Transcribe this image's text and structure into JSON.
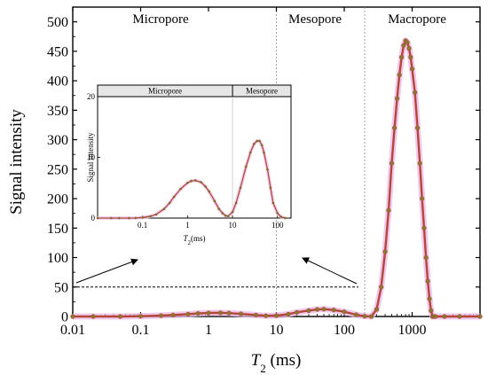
{
  "chart_data": {
    "type": "line",
    "xscale": "log",
    "xlim": [
      0.01,
      10000
    ],
    "ylim": [
      0,
      525
    ],
    "xlabel_main": "T",
    "xlabel_sub": "2",
    "xlabel_unit": " (ms)",
    "ylabel": "Signal intensity",
    "xticks": [
      0.01,
      0.1,
      1,
      10,
      100,
      1000
    ],
    "xtick_labels": [
      "0.01",
      "0.1",
      "1",
      "10",
      "100",
      "1000"
    ],
    "yticks": [
      0,
      50,
      100,
      150,
      200,
      250,
      300,
      350,
      400,
      450,
      500
    ],
    "ytick_labels": [
      "0",
      "50",
      "100",
      "150",
      "200",
      "250",
      "300",
      "350",
      "400",
      "450",
      "500"
    ],
    "regions": [
      {
        "label": "Micropore",
        "from": 0.01,
        "to": 10
      },
      {
        "label": "Mesopore",
        "from": 10,
        "to": 200
      },
      {
        "label": "Macropore",
        "from": 200,
        "to": 10000
      }
    ],
    "boundaries": [
      10,
      200
    ],
    "reference_level": 50,
    "grid": false,
    "color": "#b5463a",
    "series": [
      {
        "x": [
          0.01,
          0.02,
          0.05,
          0.1,
          0.2,
          0.3,
          0.5,
          0.7,
          1,
          1.5,
          2,
          3,
          5,
          7,
          10,
          15,
          20,
          30,
          40,
          50,
          70,
          100,
          150,
          200,
          250,
          300,
          350,
          400,
          450,
          500,
          550,
          600,
          650,
          700,
          750,
          800,
          850,
          900,
          950,
          1000,
          1100,
          1200,
          1300,
          1400,
          1500,
          1600,
          1700,
          1800,
          1900,
          2000,
          2100,
          2200,
          3000,
          5000,
          10000
        ],
        "y": [
          0,
          0,
          0,
          0.5,
          1.5,
          2.5,
          4,
          5.2,
          6,
          6.2,
          5.8,
          4.5,
          2.5,
          1.2,
          1.5,
          4,
          7,
          10,
          12,
          12.5,
          11,
          8,
          3,
          0.5,
          0,
          12,
          50,
          110,
          180,
          260,
          320,
          370,
          410,
          440,
          460,
          468,
          465,
          455,
          440,
          420,
          380,
          320,
          260,
          200,
          150,
          100,
          60,
          30,
          10,
          0,
          0,
          0,
          0,
          0,
          0
        ]
      }
    ]
  },
  "inset": {
    "xscale": "log",
    "xlim": [
      0.01,
      200
    ],
    "ylim": [
      0,
      20
    ],
    "xlabel_main": "T",
    "xlabel_sub": "2",
    "xlabel_unit": "(ms)",
    "ylabel": "Signal intensity",
    "xticks": [
      0.1,
      1,
      10,
      100
    ],
    "xtick_labels": [
      "0.1",
      "1",
      "10",
      "100"
    ],
    "yticks": [
      0,
      10,
      20
    ],
    "ytick_labels": [
      "0",
      "10",
      "20"
    ],
    "regions": [
      {
        "label": "Micropore",
        "from": 0.01,
        "to": 10
      },
      {
        "label": "Mesopore",
        "from": 10,
        "to": 200
      }
    ],
    "series": [
      {
        "x": [
          0.01,
          0.02,
          0.03,
          0.05,
          0.07,
          0.1,
          0.15,
          0.2,
          0.3,
          0.4,
          0.5,
          0.7,
          1,
          1.2,
          1.5,
          2,
          2.5,
          3,
          4,
          5,
          6,
          7,
          8,
          10,
          12,
          15,
          20,
          25,
          30,
          35,
          40,
          45,
          50,
          60,
          70,
          80,
          100,
          120,
          150
        ],
        "y": [
          0,
          0,
          0,
          0,
          0.02,
          0.1,
          0.3,
          0.6,
          1.5,
          2.5,
          3.5,
          4.8,
          5.8,
          6.1,
          6.2,
          5.9,
          5.2,
          4.4,
          2.8,
          1.5,
          0.8,
          0.4,
          0.3,
          1.0,
          2.5,
          5,
          8.5,
          10.8,
          12.2,
          12.7,
          12.7,
          12,
          10.8,
          8,
          5,
          2.5,
          0.8,
          0.2,
          0
        ]
      }
    ]
  }
}
